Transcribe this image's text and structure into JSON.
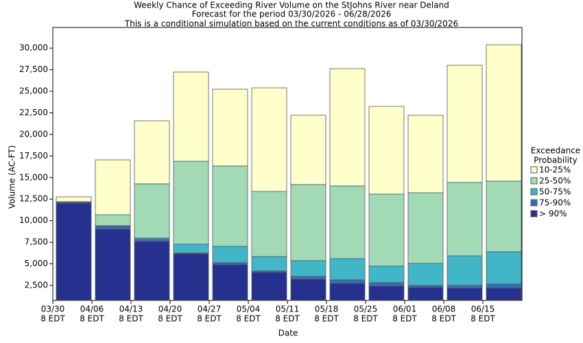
{
  "chart_data": {
    "type": "stacked_bar",
    "titles": [
      "Weekly Chance of Exceeding River Volume on the StJohns River near Deland",
      "Forecast for the period 03/30/2026 - 06/28/2026",
      "This is a conditional simulation based on the current conditions as of 03/30/2026"
    ],
    "x_label": "Date",
    "y_label": "Volume (AC-FT)",
    "categories": [
      [
        "03/30",
        "8 EDT"
      ],
      [
        "04/06",
        "8 EDT"
      ],
      [
        "04/13",
        "8 EDT"
      ],
      [
        "04/20",
        "8 EDT"
      ],
      [
        "04/27",
        "8 EDT"
      ],
      [
        "05/04",
        "8 EDT"
      ],
      [
        "05/11",
        "8 EDT"
      ],
      [
        "05/18",
        "8 EDT"
      ],
      [
        "05/25",
        "8 EDT"
      ],
      [
        "06/01",
        "8 EDT"
      ],
      [
        "06/08",
        "8 EDT"
      ],
      [
        "06/15",
        "8 EDT"
      ]
    ],
    "series": [
      {
        "name": "> 90%",
        "color": "#26318f",
        "values": [
          12000,
          9020,
          7590,
          6160,
          4890,
          4010,
          3220,
          2740,
          2420,
          2270,
          2190,
          2190
        ]
      },
      {
        "name": "75-90%",
        "color": "#2f71b5",
        "values": [
          100,
          320,
          240,
          80,
          240,
          160,
          320,
          400,
          400,
          230,
          310,
          470
        ]
      },
      {
        "name": "50-75%",
        "color": "#40b6c6",
        "values": [
          50,
          80,
          160,
          1030,
          1900,
          1670,
          1830,
          2460,
          1910,
          2550,
          3420,
          3740
        ]
      },
      {
        "name": "25-50%",
        "color": "#a3dab6",
        "values": [
          50,
          1270,
          6280,
          9620,
          9310,
          7550,
          8820,
          8430,
          8350,
          8190,
          8510,
          8190
        ]
      },
      {
        "name": "10-25%",
        "color": "#ffffcc",
        "values": [
          560,
          6360,
          7310,
          10340,
          8900,
          12010,
          8030,
          13590,
          10170,
          8980,
          13590,
          15810
        ]
      }
    ],
    "legend_title": [
      "Exceedance",
      "Probability"
    ],
    "ylim": [
      750,
      32400
    ],
    "yticks": [
      {
        "value": 2500,
        "label": "2,500"
      },
      {
        "value": 5000,
        "label": "5,000"
      },
      {
        "value": 7500,
        "label": "7,500"
      },
      {
        "value": 10000,
        "label": "10,000"
      },
      {
        "value": 12500,
        "label": "12,500"
      },
      {
        "value": 15000,
        "label": "15,000"
      },
      {
        "value": 17500,
        "label": "17,500"
      },
      {
        "value": 20000,
        "label": "20,000"
      },
      {
        "value": 22500,
        "label": "22,500"
      },
      {
        "value": 25000,
        "label": "25,000"
      },
      {
        "value": 27500,
        "label": "27,500"
      },
      {
        "value": 30000,
        "label": "30,000"
      }
    ]
  }
}
